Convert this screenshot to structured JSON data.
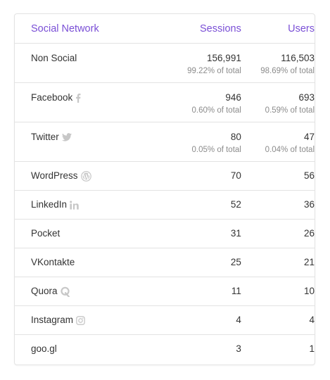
{
  "table": {
    "headers": {
      "network": "Social Network",
      "sessions": "Sessions",
      "users": "Users"
    },
    "rows": [
      {
        "network": "Non Social",
        "icon": null,
        "sessions": "156,991",
        "sessions_pct": "99.22% of total",
        "users": "116,503",
        "users_pct": "98.69% of total"
      },
      {
        "network": "Facebook",
        "icon": "facebook-icon",
        "sessions": "946",
        "sessions_pct": "0.60% of total",
        "users": "693",
        "users_pct": "0.59% of total"
      },
      {
        "network": "Twitter",
        "icon": "twitter-icon",
        "sessions": "80",
        "sessions_pct": "0.05% of total",
        "users": "47",
        "users_pct": "0.04% of total"
      },
      {
        "network": "WordPress",
        "icon": "wordpress-icon",
        "sessions": "70",
        "users": "56"
      },
      {
        "network": "LinkedIn",
        "icon": "linkedin-icon",
        "sessions": "52",
        "users": "36"
      },
      {
        "network": "Pocket",
        "icon": null,
        "sessions": "31",
        "users": "26"
      },
      {
        "network": "VKontakte",
        "icon": null,
        "sessions": "25",
        "users": "21"
      },
      {
        "network": "Quora",
        "icon": "quora-icon",
        "sessions": "11",
        "users": "10"
      },
      {
        "network": "Instagram",
        "icon": "instagram-icon",
        "sessions": "4",
        "users": "4"
      },
      {
        "network": "goo.gl",
        "icon": null,
        "sessions": "3",
        "users": "1"
      }
    ]
  },
  "colors": {
    "header_text": "#7a4fd6",
    "icon": "#c7c7c7",
    "muted_text": "#8c8c8c",
    "border": "#e3e3e3"
  }
}
